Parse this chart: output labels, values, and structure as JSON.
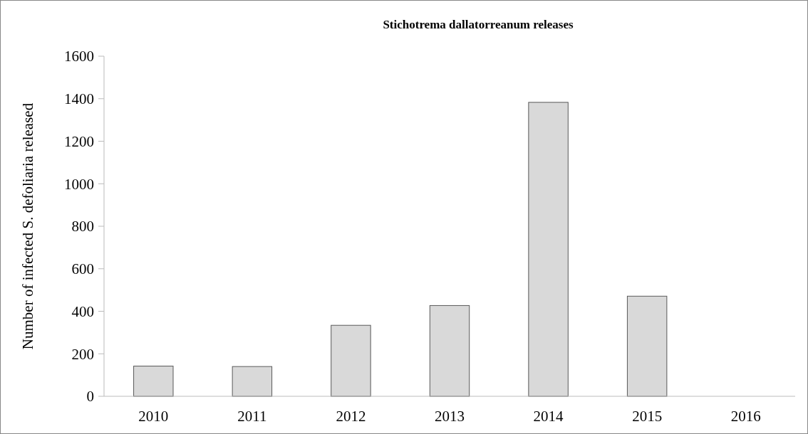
{
  "chart_data": {
    "type": "bar",
    "title": "Stichotrema dallatorreanum releases",
    "ylabel": "Number of infected S. defoliaria released",
    "categories": [
      "2010",
      "2011",
      "2012",
      "2013",
      "2014",
      "2015",
      "2016"
    ],
    "values": [
      142,
      140,
      334,
      427,
      1383,
      471,
      0
    ],
    "color": "#d9d9d9",
    "ylim": [
      0,
      1600
    ],
    "yticks": [
      0,
      200,
      400,
      600,
      800,
      1000,
      1200,
      1400,
      1600
    ],
    "grid": false
  }
}
